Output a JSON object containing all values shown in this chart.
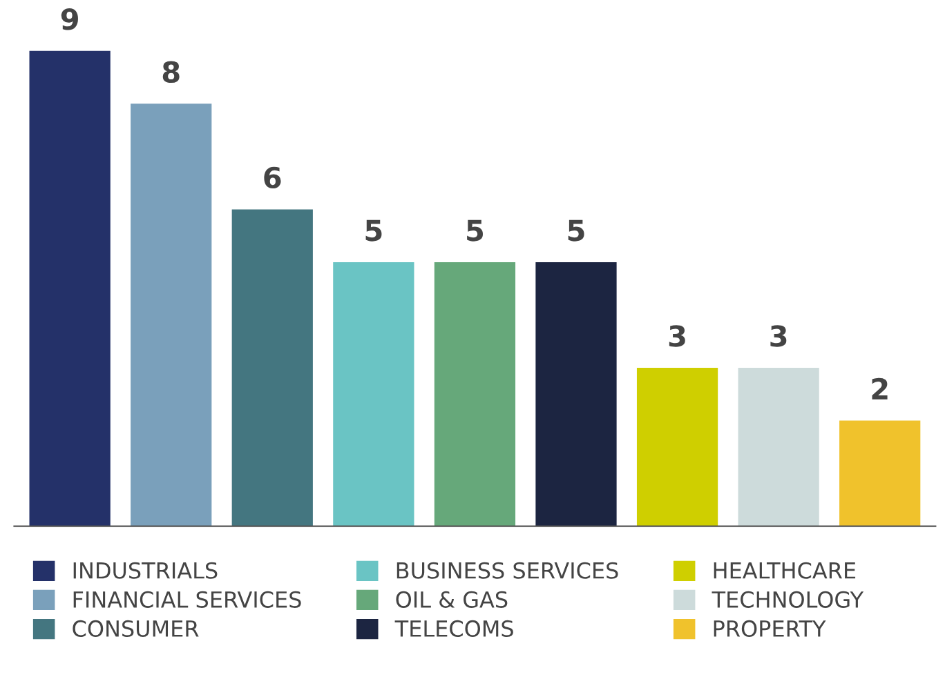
{
  "chart_data": {
    "type": "bar",
    "stacked": true,
    "categories": [
      null,
      null,
      null,
      null,
      null,
      null,
      null,
      null,
      null
    ],
    "series": [
      {
        "name": "INDUSTRIALS",
        "color": "#243169",
        "values": [
          9,
          null,
          null,
          null,
          null,
          null,
          null,
          null,
          null
        ]
      },
      {
        "name": "FINANCIAL SERVICES",
        "color": "#7aa0bb",
        "values": [
          null,
          8,
          null,
          null,
          null,
          null,
          null,
          null,
          null
        ]
      },
      {
        "name": "CONSUMER",
        "color": "#447680",
        "values": [
          null,
          null,
          6,
          null,
          null,
          null,
          null,
          null,
          null
        ]
      },
      {
        "name": "BUSINESS SERVICES",
        "color": "#6ac4c4",
        "values": [
          null,
          null,
          null,
          5,
          null,
          null,
          null,
          null,
          null
        ]
      },
      {
        "name": "OIL & GAS",
        "color": "#66a87a",
        "values": [
          null,
          null,
          null,
          null,
          5,
          null,
          null,
          null,
          null
        ]
      },
      {
        "name": "TELECOMS",
        "color": "#1c2541",
        "values": [
          null,
          null,
          null,
          null,
          null,
          5,
          null,
          null,
          null
        ]
      },
      {
        "name": "HEALTHCARE",
        "color": "#cfcf00",
        "values": [
          null,
          null,
          null,
          null,
          null,
          null,
          3,
          null,
          null
        ]
      },
      {
        "name": "TECHNOLOGY",
        "color": "#cddbdb",
        "values": [
          null,
          null,
          null,
          null,
          null,
          null,
          null,
          3,
          null
        ]
      },
      {
        "name": "PROPERTY",
        "color": "#f0c22c",
        "values": [
          null,
          null,
          null,
          null,
          null,
          null,
          null,
          null,
          2
        ]
      }
    ],
    "data_labels": true,
    "legend": "bottom",
    "grid": false
  }
}
